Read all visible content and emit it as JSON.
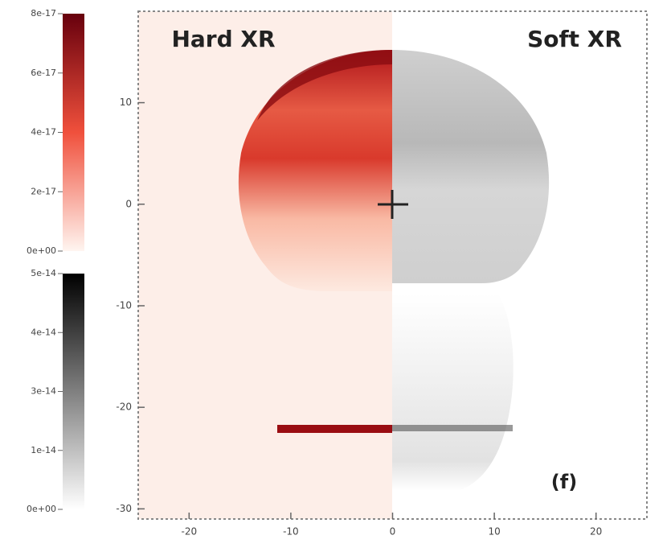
{
  "chart_data": {
    "type": "image",
    "annotations": [
      "Hard XR",
      "Soft XR",
      "(f)"
    ],
    "xlim": [
      -25,
      25
    ],
    "xticks": [
      -20,
      -10,
      0,
      10,
      20
    ],
    "ylim": [
      -31,
      19
    ],
    "yticks": [
      -30,
      -20,
      -10,
      0,
      10
    ],
    "colorbars": [
      {
        "lim": [
          0,
          8e-17
        ],
        "colors": [
          "#fff5f0",
          "#67000d"
        ],
        "ticks": [
          {
            "value": 0,
            "label": "0e+00"
          },
          2e-17,
          4e-17,
          6e-17,
          8e-17
        ]
      },
      {
        "lim": [
          0,
          5e-14
        ],
        "colors": [
          "#ffffff",
          "#000000"
        ],
        "ticks": [
          {
            "value": 0,
            "label": "0e+00"
          },
          {
            "value": 1.25e-14,
            "label": "1e-14"
          },
          {
            "value": 2.5e-14,
            "label": "3e-14"
          },
          {
            "value": 3.75e-14,
            "label": "4e-14"
          },
          5e-14
        ]
      }
    ]
  }
}
